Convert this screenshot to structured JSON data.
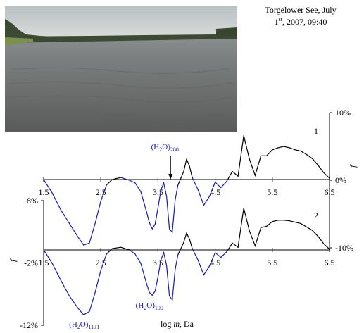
{
  "caption": {
    "line1": "Torgelower See, July",
    "line2_a": "1",
    "line2_sup": "st",
    "line2_b": ", 2007, 09:40"
  },
  "chart_data": {
    "type": "line",
    "xlabel": "log m, Da",
    "xlim": [
      1.5,
      6.5
    ],
    "x_ticks": [
      "1.5",
      "2.5",
      "3.5",
      "4.5",
      "5.5",
      "6.5"
    ],
    "right_axis": {
      "label": "f",
      "ticks": [
        "10%",
        "0%",
        "-10%"
      ],
      "ylim": [
        -10,
        10
      ]
    },
    "left_axis": {
      "label": "f",
      "ticks": [
        "8%",
        "-2%",
        "-12%"
      ],
      "ylim": [
        -12,
        8
      ]
    },
    "panel_labels": [
      "1",
      "2"
    ],
    "annotations": {
      "h2o280": {
        "base": "(H",
        "sub1": "2",
        "mid": "O)",
        "sub2": "280",
        "x": 3.72
      },
      "h2o100": {
        "base": "(H",
        "sub1": "2",
        "mid": "O)",
        "sub2": "100",
        "x": 3.4
      },
      "h2o11": {
        "base": "(H",
        "sub1": "2",
        "mid": "O)",
        "sub2": "11±1",
        "x": 2.2
      }
    },
    "series": [
      {
        "panel": 1,
        "x": [
          1.5,
          1.65,
          1.8,
          1.95,
          2.1,
          2.2,
          2.3,
          2.4,
          2.5,
          2.6,
          2.7,
          2.85,
          3.0,
          3.1,
          3.2,
          3.3,
          3.35,
          3.4,
          3.45,
          3.5,
          3.55,
          3.6,
          3.65,
          3.7,
          3.75,
          3.8,
          3.85,
          3.9,
          3.95,
          4.0,
          4.05,
          4.1,
          4.2,
          4.3,
          4.4,
          4.5,
          4.6,
          4.7,
          4.8,
          4.9,
          5.0,
          5.1,
          5.2,
          5.3,
          5.4,
          5.5,
          5.6,
          5.7,
          5.8,
          5.9,
          6.0,
          6.1,
          6.2,
          6.3,
          6.4,
          6.5
        ],
        "y": [
          0,
          -2,
          -4.5,
          -6.5,
          -8.5,
          -9.7,
          -9.4,
          -6.5,
          -3.2,
          -0.8,
          0,
          0.3,
          -0.1,
          -0.5,
          -1.8,
          -4.8,
          -6.4,
          -7.3,
          -6.6,
          -4.2,
          -1.6,
          -0.5,
          -2.5,
          -7.3,
          -7.8,
          -3,
          -0.8,
          0.2,
          1.2,
          3,
          2,
          0.3,
          -1.5,
          -3.8,
          -2.5,
          -0.4,
          -1.2,
          -0.3,
          1.2,
          0.5,
          6.5,
          3,
          0.6,
          3.5,
          3.5,
          4.4,
          4.7,
          4.9,
          4.7,
          4.4,
          4.2,
          3.7,
          3.1,
          2.1,
          1,
          0.2
        ]
      },
      {
        "panel": 2,
        "x": [
          1.5,
          1.65,
          1.8,
          1.95,
          2.1,
          2.2,
          2.3,
          2.4,
          2.5,
          2.6,
          2.7,
          2.85,
          3.0,
          3.1,
          3.2,
          3.3,
          3.35,
          3.4,
          3.45,
          3.5,
          3.55,
          3.6,
          3.65,
          3.7,
          3.75,
          3.8,
          3.85,
          3.9,
          3.95,
          4.0,
          4.05,
          4.1,
          4.2,
          4.3,
          4.4,
          4.5,
          4.6,
          4.7,
          4.8,
          4.9,
          5.0,
          5.1,
          5.2,
          5.3,
          5.4,
          5.5,
          5.6,
          5.7,
          5.8,
          5.9,
          6.0,
          6.1,
          6.2,
          6.3,
          6.4,
          6.5
        ],
        "y": [
          0,
          -2,
          -4.5,
          -6.8,
          -8.6,
          -9.6,
          -9.1,
          -6.3,
          -3,
          -0.6,
          0.2,
          0.4,
          0,
          -0.6,
          -2,
          -5,
          -6.3,
          -6.7,
          -6.1,
          -4,
          -1.5,
          -0.4,
          -2.3,
          -6.8,
          -7.4,
          -2.9,
          -0.7,
          0.2,
          1.1,
          2.5,
          1.6,
          0.2,
          -1.5,
          -3.7,
          -2.4,
          -0.4,
          -1.1,
          -0.3,
          1,
          0.4,
          6.2,
          2.8,
          0.6,
          3.3,
          3.5,
          4.2,
          4.4,
          4.4,
          4.3,
          4.1,
          3.9,
          3.4,
          2.9,
          2,
          0.9,
          0.1
        ]
      }
    ],
    "series_colors": {
      "positive": "#000000",
      "negative": "#1a1aa8"
    }
  }
}
